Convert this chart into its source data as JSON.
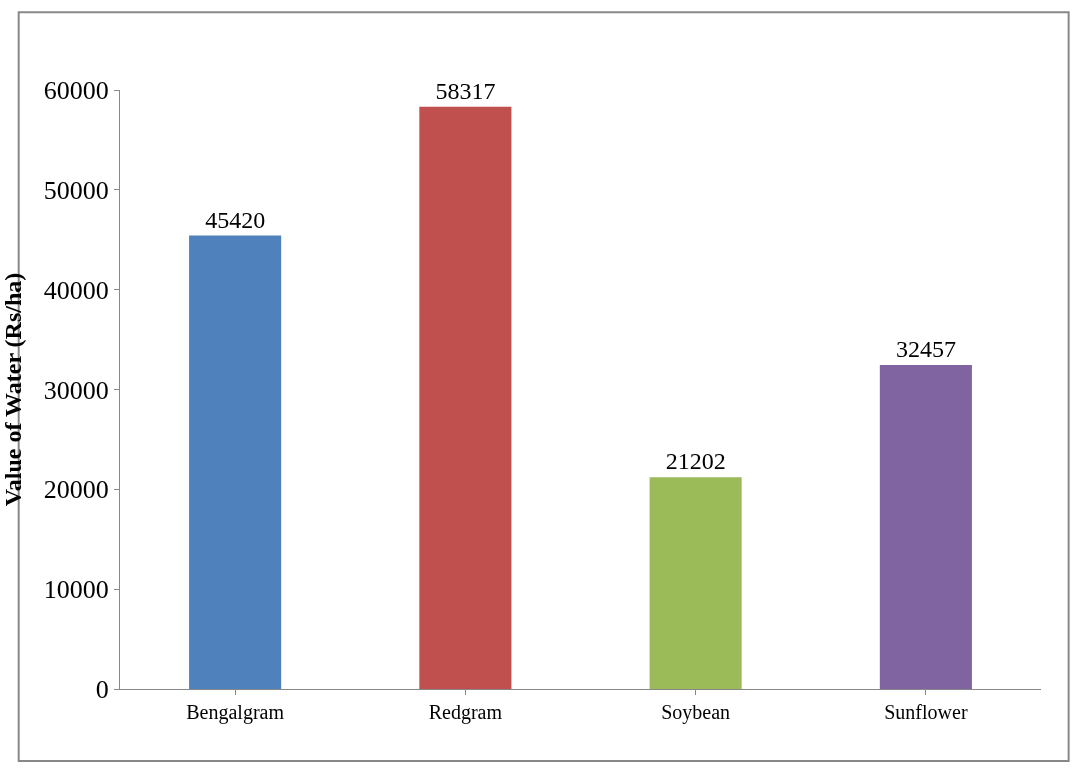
{
  "chart_data": {
    "type": "bar",
    "ylabel": "Value of Water (Rs/ha)",
    "categories": [
      "Bengalgram",
      "Redgram",
      "Soybean",
      "Sunflower"
    ],
    "values": [
      45420,
      58317,
      21202,
      32457
    ],
    "colors": [
      "#4f81bd",
      "#c0504d",
      "#9bbb59",
      "#8064a2"
    ],
    "ylim": [
      0,
      60000
    ],
    "yticks": [
      0,
      10000,
      20000,
      30000,
      40000,
      50000,
      60000
    ],
    "data_labels": true
  }
}
